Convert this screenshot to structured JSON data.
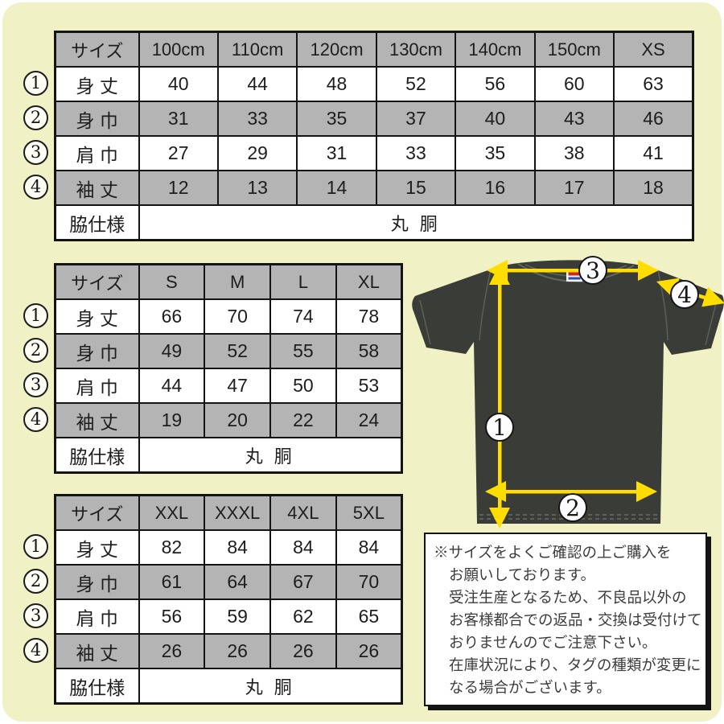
{
  "page": {
    "background": "#f0f2c6",
    "accent_yellow": "#ffdd00",
    "cell_gray": "#b4b4b4",
    "shirt_color": "#3a3c38"
  },
  "tables": [
    {
      "name": "kids-sizes",
      "header": [
        "サイズ",
        "100cm",
        "110cm",
        "120cm",
        "130cm",
        "140cm",
        "150cm",
        "XS"
      ],
      "rows": [
        {
          "num": "1",
          "label": "身 丈",
          "values": [
            "40",
            "44",
            "48",
            "52",
            "56",
            "60",
            "63"
          ]
        },
        {
          "num": "2",
          "label": "身 巾",
          "values": [
            "31",
            "33",
            "35",
            "37",
            "40",
            "43",
            "46"
          ]
        },
        {
          "num": "3",
          "label": "肩 巾",
          "values": [
            "27",
            "29",
            "31",
            "33",
            "35",
            "38",
            "41"
          ]
        },
        {
          "num": "4",
          "label": "袖 丈",
          "values": [
            "12",
            "13",
            "14",
            "15",
            "16",
            "17",
            "18"
          ]
        }
      ],
      "footer": {
        "label": "脇仕様",
        "value": "丸 胴"
      }
    },
    {
      "name": "adult-sizes",
      "header": [
        "サイズ",
        "S",
        "M",
        "L",
        "XL"
      ],
      "rows": [
        {
          "num": "1",
          "label": "身 丈",
          "values": [
            "66",
            "70",
            "74",
            "78"
          ]
        },
        {
          "num": "2",
          "label": "身 巾",
          "values": [
            "49",
            "52",
            "55",
            "58"
          ]
        },
        {
          "num": "3",
          "label": "肩 巾",
          "values": [
            "44",
            "47",
            "50",
            "53"
          ]
        },
        {
          "num": "4",
          "label": "袖 丈",
          "values": [
            "19",
            "20",
            "22",
            "24"
          ]
        }
      ],
      "footer": {
        "label": "脇仕様",
        "value": "丸 胴"
      }
    },
    {
      "name": "big-sizes",
      "header": [
        "サイズ",
        "XXL",
        "XXXL",
        "4XL",
        "5XL"
      ],
      "rows": [
        {
          "num": "1",
          "label": "身 丈",
          "values": [
            "82",
            "84",
            "84",
            "84"
          ]
        },
        {
          "num": "2",
          "label": "身 巾",
          "values": [
            "61",
            "64",
            "67",
            "70"
          ]
        },
        {
          "num": "3",
          "label": "肩 巾",
          "values": [
            "56",
            "59",
            "62",
            "65"
          ]
        },
        {
          "num": "4",
          "label": "袖 丈",
          "values": [
            "26",
            "26",
            "26",
            "26"
          ]
        }
      ],
      "footer": {
        "label": "脇仕様",
        "value": "丸 胴"
      }
    }
  ],
  "shirt": {
    "markers": {
      "m1": "1",
      "m2": "2",
      "m3": "3",
      "m4": "4"
    }
  },
  "note": {
    "lines": [
      {
        "text": "※サイズをよくご確認の上ご購入を",
        "indent": false
      },
      {
        "text": "お願いしております。",
        "indent": true
      },
      {
        "text": "受注生産となるため、不良品以外の",
        "indent": true
      },
      {
        "text": "お客様都合での返品・交換は受付けて",
        "indent": true
      },
      {
        "text": "おりませんのでご注意下さい。",
        "indent": true
      },
      {
        "text": "在庫状況により、タグの種類が変更に",
        "indent": true
      },
      {
        "text": "なる場合がございます。",
        "indent": true
      }
    ]
  }
}
